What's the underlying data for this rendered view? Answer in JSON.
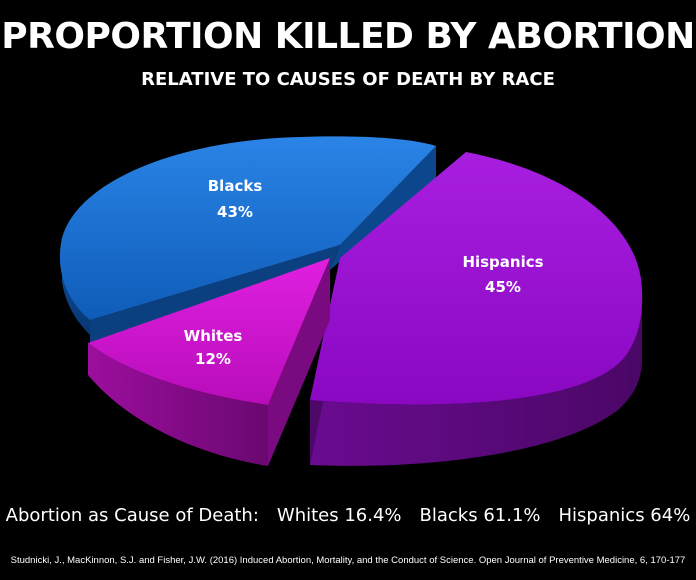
{
  "title": "PROPORTION KILLED BY ABORTION",
  "subtitle": "RELATIVE TO CAUSES OF DEATH BY RACE",
  "summary": {
    "lead": "Abortion as Cause of Death:",
    "items": [
      "Whites 16.4%",
      "Blacks 61.1%",
      "Hispanics 64%"
    ]
  },
  "citation": "Studnicki, J., MacKinnon, S.J. and Fisher, J.W. (2016) Induced Abortion, Mortality, and the Conduct of Science. Open Journal of Preventive Medicine, 6, 170-177",
  "chart_data": {
    "type": "pie",
    "style": "3d-exploded",
    "slices": [
      {
        "name": "Blacks",
        "value_label": "43%",
        "value": 43,
        "color": "#1a6fd0",
        "side_color": "#0d4690"
      },
      {
        "name": "Hispanics",
        "value_label": "45%",
        "value": 45,
        "color": "#9a10cf",
        "side_color": "#5c0a7e"
      },
      {
        "name": "Whites",
        "value_label": "12%",
        "value": 12,
        "color": "#d010d0",
        "side_color": "#8a0c8c"
      }
    ],
    "title": "PROPORTION KILLED BY ABORTION",
    "subtitle": "RELATIVE TO CAUSES OF DEATH BY RACE"
  }
}
